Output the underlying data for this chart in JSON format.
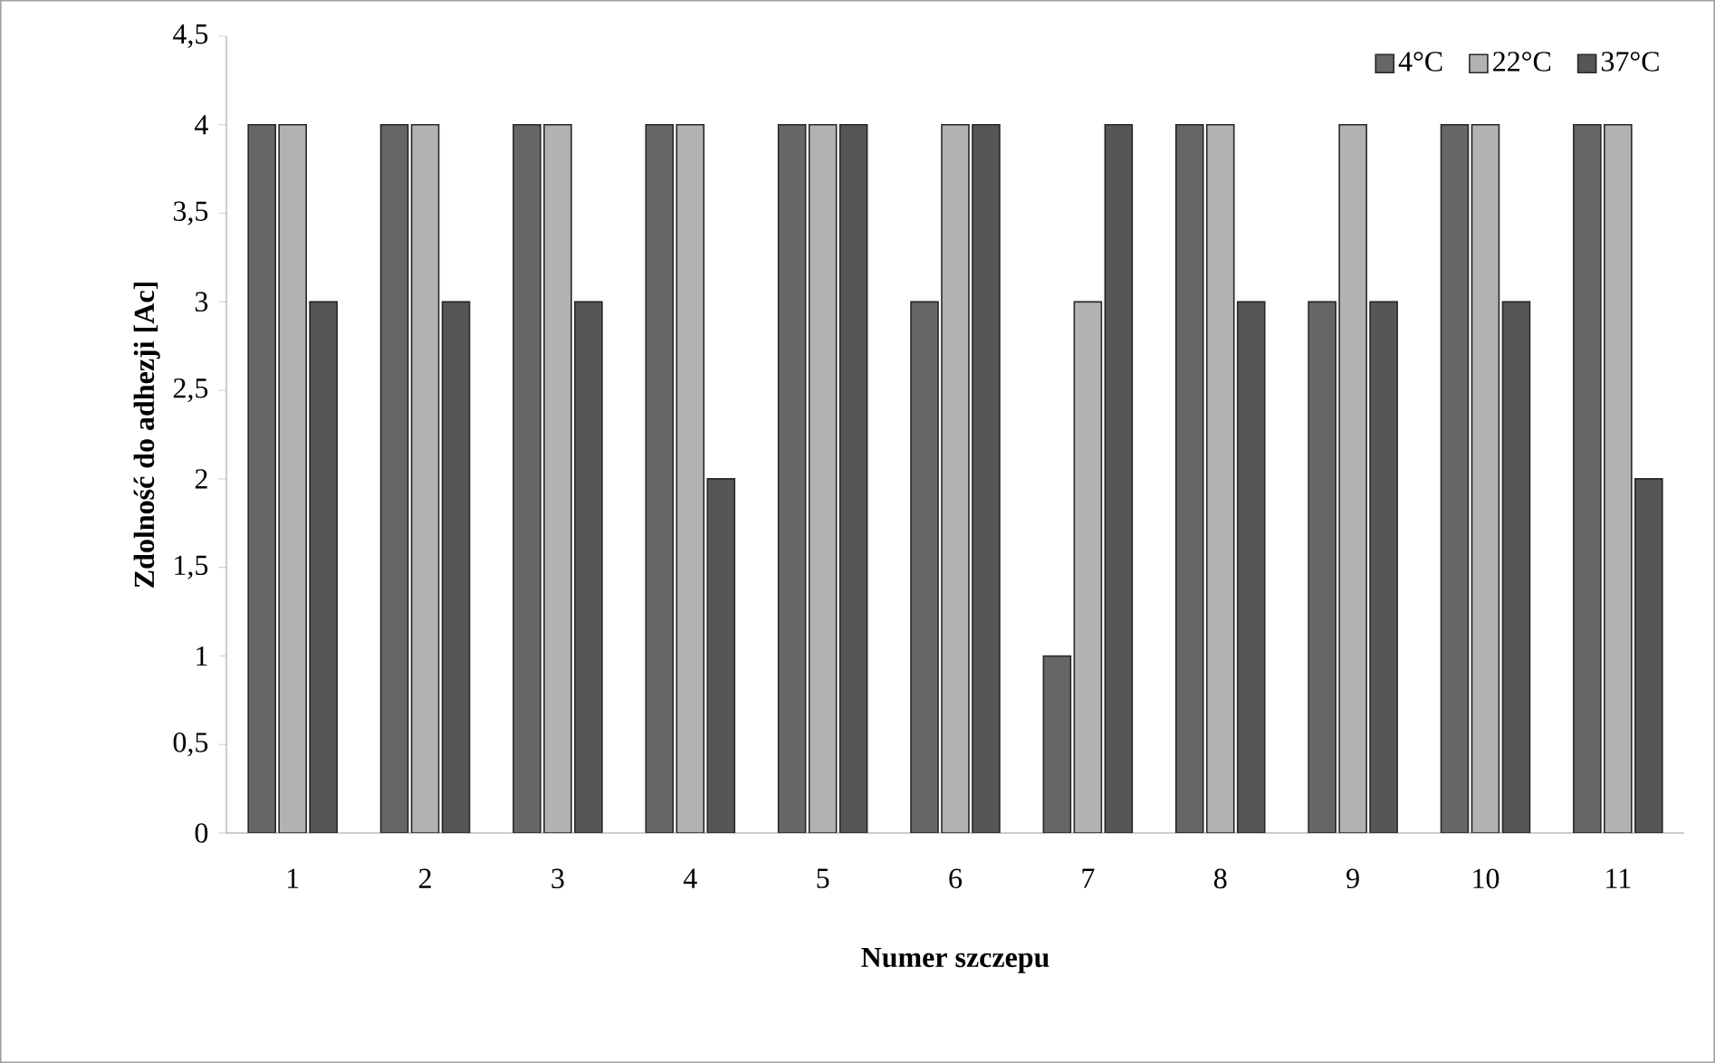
{
  "chart_data": {
    "type": "bar",
    "xlabel": "Numer szczepu",
    "ylabel": "Zdolność do adhezji [Ac]",
    "categories": [
      "1",
      "2",
      "3",
      "4",
      "5",
      "6",
      "7",
      "8",
      "9",
      "10",
      "11"
    ],
    "series": [
      {
        "name": "4°C",
        "color": "#666666",
        "values": [
          4,
          4,
          4,
          4,
          4,
          3,
          1,
          4,
          3,
          4,
          4
        ]
      },
      {
        "name": "22°C",
        "color": "#b2b2b5",
        "values": [
          4,
          4,
          4,
          4,
          4,
          4,
          3,
          4,
          4,
          4,
          4
        ]
      },
      {
        "name": "37°C",
        "color": "#545658",
        "values": [
          3,
          3,
          3,
          2,
          4,
          4,
          4,
          3,
          3,
          3,
          2
        ]
      }
    ],
    "ylim": [
      0,
      4.5
    ],
    "yticks": [
      0,
      {
        "value": 0.5,
        "label": "0,5"
      },
      1,
      {
        "value": 1.5,
        "label": "1,5"
      },
      2,
      {
        "value": 2.5,
        "label": "2,5"
      },
      3,
      {
        "value": 3.5,
        "label": "3,5"
      },
      4,
      {
        "value": 4.5,
        "label": "4,5"
      }
    ],
    "grid": false,
    "legend": "top right"
  }
}
